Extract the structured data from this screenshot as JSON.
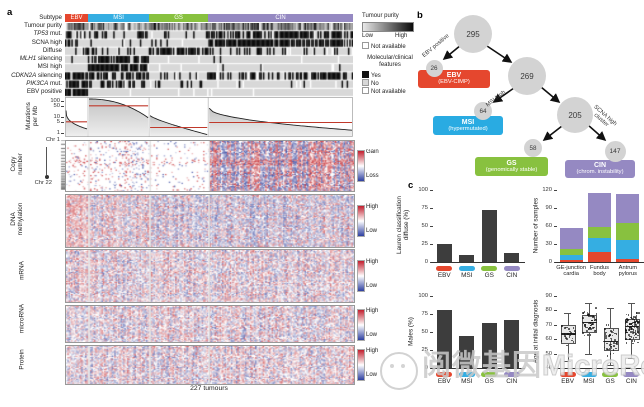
{
  "watermark": {
    "cn": "阅微基因",
    "en": "MicroRead"
  },
  "panel_a": {
    "label": "a",
    "subtypes": [
      {
        "name": "EBV",
        "color": "#e5472e",
        "frac": 0.08
      },
      {
        "name": "MSI",
        "color": "#35aee2",
        "frac": 0.212
      },
      {
        "name": "GS",
        "color": "#88c13f",
        "frac": 0.205
      },
      {
        "name": "CIN",
        "color": "#9589c2",
        "frac": 0.503
      }
    ],
    "track_rows": [
      {
        "text": "Subtype",
        "type": "subtype"
      },
      {
        "text": "Tumour purity",
        "type": "gray"
      },
      {
        "italic": "TP53",
        "rest": " mut.",
        "type": "bin",
        "dens": [
          0.3,
          0.38,
          0.12,
          0.72
        ]
      },
      {
        "text": "SCNA high",
        "type": "bin",
        "dens": [
          0.3,
          0.12,
          0.06,
          0.82
        ]
      },
      {
        "text": "Diffuse",
        "type": "bin",
        "dens": [
          0.12,
          0.22,
          0.72,
          0.22
        ]
      },
      {
        "italic": "MLH1",
        "rest": " silencing",
        "type": "bin",
        "dens": [
          0.06,
          0.72,
          0.03,
          0.02
        ]
      },
      {
        "text": "MSI high",
        "type": "bin",
        "dens": [
          0.0,
          0.96,
          0.03,
          0.02
        ]
      },
      {
        "italic": "CDKN2A",
        "rest": " silencing",
        "type": "bin",
        "dens": [
          0.92,
          0.6,
          0.18,
          0.55
        ]
      },
      {
        "italic": "PIK3CA",
        "rest": " mut.",
        "type": "bin",
        "dens": [
          0.75,
          0.42,
          0.12,
          0.1
        ]
      },
      {
        "text": "EBV positive",
        "type": "bin",
        "dens": [
          1.0,
          0.0,
          0.0,
          0.0
        ]
      }
    ],
    "legend": {
      "purity_title": "Tumour purity",
      "low": "Low",
      "high": "High",
      "na": "Not available",
      "mc_title_1": "Molecular/clinical",
      "mc_title_2": "features",
      "yes": "Yes",
      "no": "No",
      "na2": "Not available"
    },
    "mutations": {
      "ylabel_1": "Mutations",
      "ylabel_2": "per Mb",
      "yticks": [
        100,
        50,
        10,
        5,
        1
      ],
      "groups": [
        {
          "name": "EBV",
          "start": 25,
          "end": 1.8,
          "shape": 0.35,
          "median": 5
        },
        {
          "name": "MSI",
          "start": 130,
          "end": 9,
          "shape": 2.2,
          "median": 49
        },
        {
          "name": "GS",
          "start": 12,
          "end": 0.8,
          "shape": 0.8,
          "median": 2.2
        },
        {
          "name": "CIN",
          "start": 35,
          "end": 1.5,
          "shape": 0.5,
          "median": 4.5
        }
      ]
    },
    "heatmaps": [
      {
        "label_1": "Copy",
        "label_2": "number",
        "top": "Gain",
        "bottom": "Loss",
        "kind": "cn"
      },
      {
        "label_1": "DNA",
        "label_2": "methylation",
        "top": "High",
        "bottom": "Low",
        "kind": "meth"
      },
      {
        "label_1": "mRNA",
        "label_2": "",
        "top": "High",
        "bottom": "Low",
        "kind": "dense"
      },
      {
        "label_1": "microRNA",
        "label_2": "",
        "top": "High",
        "bottom": "Low",
        "kind": "dense"
      },
      {
        "label_1": "Protein",
        "label_2": "",
        "top": "High",
        "bottom": "Low",
        "kind": "dense"
      }
    ],
    "chr_top": "Chr 1",
    "chr_bottom": "Chr 22",
    "footer": "227 tumours"
  },
  "panel_b": {
    "label": "b",
    "nodes": {
      "n295": "295",
      "n26": "26",
      "n269": "269",
      "n64": "64",
      "n205": "205",
      "n58": "58",
      "n147": "147"
    },
    "edges": {
      "ebv": "EBV positive",
      "msi": "MSI high",
      "scna_1": "SCNA high",
      "scna_2": "cluster"
    },
    "boxes": {
      "ebv": {
        "t1": "EBV",
        "t2": "(EBV-CIMP)",
        "color": "#e5472e"
      },
      "msi": {
        "t1": "MSI",
        "t2": "(hypermutated)",
        "color": "#29abe2"
      },
      "gs": {
        "t1": "GS",
        "t2": "(genomically stable)",
        "color": "#88c13f"
      },
      "cin": {
        "t1": "CIN",
        "t2": "(chrom. instability)",
        "color": "#9589c2"
      }
    }
  },
  "panel_c": {
    "label": "c",
    "subtype_labels": [
      "EBV",
      "MSI",
      "GS",
      "CIN"
    ],
    "subtype_colors": [
      "#e5472e",
      "#35aee2",
      "#88c13f",
      "#9589c2"
    ],
    "lauren": {
      "type": "bar",
      "ylabel_1": "Lauren classification",
      "ylabel_2": "diffuse (%)",
      "yticks": [
        100,
        75,
        50,
        25,
        0
      ],
      "ymax": 100,
      "categories": [
        "EBV",
        "MSI",
        "GS",
        "CIN"
      ],
      "values": [
        25,
        10,
        72,
        13
      ]
    },
    "samples": {
      "type": "stacked-bar",
      "ylabel": "Number of samples",
      "yticks": [
        120,
        90,
        60,
        30,
        0
      ],
      "ymax": 120,
      "categories": [
        [
          "GE-junction",
          "cardia"
        ],
        [
          "Fundus",
          "body"
        ],
        [
          "Antrum",
          "pylorus"
        ]
      ],
      "series_order": [
        "EBV",
        "MSI",
        "GS",
        "CIN"
      ],
      "stacks": [
        [
          3,
          8,
          10,
          36
        ],
        [
          16,
          24,
          18,
          57
        ],
        [
          5,
          31,
          29,
          48
        ]
      ]
    },
    "males": {
      "type": "bar",
      "ylabel": "Males (%)",
      "yticks": [
        100,
        75,
        50,
        25,
        0
      ],
      "ymax": 100,
      "categories": [
        "EBV",
        "MSI",
        "GS",
        "CIN"
      ],
      "values": [
        81,
        44,
        62,
        66
      ]
    },
    "age": {
      "type": "boxplot",
      "ylabel": "Age at initial diagnosis",
      "yticks": [
        90,
        80,
        70,
        60,
        50,
        40
      ],
      "ymin": 40,
      "ymax": 90,
      "categories": [
        "EBV",
        "MSI",
        "GS",
        "CIN"
      ],
      "boxes": [
        {
          "lo": 45,
          "q1": 58,
          "med": 64,
          "q3": 70,
          "hi": 78
        },
        {
          "lo": 50,
          "q1": 66,
          "med": 72,
          "q3": 77,
          "hi": 85
        },
        {
          "lo": 42,
          "q1": 53,
          "med": 59,
          "q3": 68,
          "hi": 82
        },
        {
          "lo": 47,
          "q1": 61,
          "med": 69,
          "q3": 74,
          "hi": 85
        }
      ],
      "n_points": [
        24,
        52,
        48,
        105
      ]
    }
  }
}
